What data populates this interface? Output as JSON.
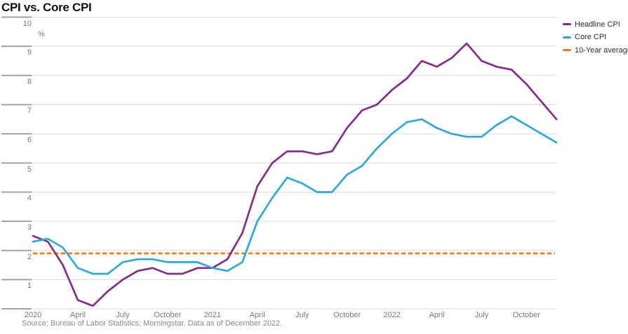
{
  "title": "CPI vs. Core CPI",
  "source_note": "Source: Bureau of Labor Statistics, Morningstar. Data as of December 2022.",
  "chart_data": {
    "type": "line",
    "title": "CPI vs. Core CPI",
    "ylabel": "%",
    "ylim": [
      0,
      10
    ],
    "y_ticks": [
      10,
      9,
      8,
      7,
      6,
      5,
      4,
      3,
      2,
      1
    ],
    "grid": "horizontal",
    "legend_position": "top-right",
    "x_ticks": [
      {
        "label": "2020",
        "month": 0
      },
      {
        "label": "April",
        "month": 3
      },
      {
        "label": "July",
        "month": 6
      },
      {
        "label": "October",
        "month": 9
      },
      {
        "label": "2021",
        "month": 12
      },
      {
        "label": "April",
        "month": 15
      },
      {
        "label": "July",
        "month": 18
      },
      {
        "label": "October",
        "month": 21
      },
      {
        "label": "2022",
        "month": 24
      },
      {
        "label": "April",
        "month": 27
      },
      {
        "label": "July",
        "month": 30
      },
      {
        "label": "October",
        "month": 33
      }
    ],
    "months": [
      "Jan 2020",
      "Feb 2020",
      "Mar 2020",
      "Apr 2020",
      "May 2020",
      "Jun 2020",
      "Jul 2020",
      "Aug 2020",
      "Sep 2020",
      "Oct 2020",
      "Nov 2020",
      "Dec 2020",
      "Jan 2021",
      "Feb 2021",
      "Mar 2021",
      "Apr 2021",
      "May 2021",
      "Jun 2021",
      "Jul 2021",
      "Aug 2021",
      "Sep 2021",
      "Oct 2021",
      "Nov 2021",
      "Dec 2021",
      "Jan 2022",
      "Feb 2022",
      "Mar 2022",
      "Apr 2022",
      "May 2022",
      "Jun 2022",
      "Jul 2022",
      "Aug 2022",
      "Sep 2022",
      "Oct 2022",
      "Nov 2022",
      "Dec 2022"
    ],
    "series": [
      {
        "name": "Headline CPI",
        "color": "#862d8a",
        "values": [
          2.5,
          2.3,
          1.5,
          0.3,
          0.1,
          0.6,
          1.0,
          1.3,
          1.4,
          1.2,
          1.2,
          1.4,
          1.4,
          1.7,
          2.6,
          4.2,
          5.0,
          5.4,
          5.4,
          5.3,
          5.4,
          6.2,
          6.8,
          7.0,
          7.5,
          7.9,
          8.5,
          8.3,
          8.6,
          9.1,
          8.5,
          8.3,
          8.2,
          7.7,
          7.1,
          6.5
        ]
      },
      {
        "name": "Core CPI",
        "color": "#29abe2",
        "values": [
          2.3,
          2.4,
          2.1,
          1.4,
          1.2,
          1.2,
          1.6,
          1.7,
          1.7,
          1.6,
          1.6,
          1.6,
          1.4,
          1.3,
          1.6,
          3.0,
          3.8,
          4.5,
          4.3,
          4.0,
          4.0,
          4.6,
          4.9,
          5.5,
          6.0,
          6.4,
          6.5,
          6.2,
          6.0,
          5.9,
          5.9,
          6.3,
          6.6,
          6.3,
          6.0,
          5.7
        ]
      }
    ],
    "reference_line": {
      "name": "10-Year average",
      "value": 1.9,
      "color": "#f47c20",
      "style": "dashed"
    }
  },
  "colors": {
    "grid_light": "#dcdcdc",
    "grid_dark": "#a3a3a3",
    "axis_text": "#7a7a7a",
    "source_text": "#8a8a8a",
    "legend_text": "#2e2e2e",
    "title_text": "#111111"
  }
}
